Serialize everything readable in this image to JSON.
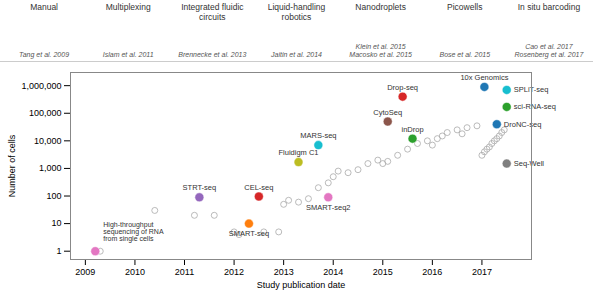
{
  "chart_data": {
    "type": "scatter",
    "xlabel": "Study publication date",
    "ylabel": "Number of cells",
    "log": "y",
    "grid": false,
    "xlim": [
      2008.7,
      2018.0
    ],
    "ylim": [
      0.5,
      3000000
    ],
    "xticks": [
      2009,
      2010,
      2011,
      2012,
      2013,
      2014,
      2015,
      2016,
      2017
    ],
    "yticks": [
      1,
      10,
      100,
      {
        "value": 1000,
        "label": "1,000"
      },
      {
        "value": 10000,
        "label": "10,000"
      },
      {
        "value": 100000,
        "label": "100,000"
      },
      {
        "value": 1000000,
        "label": "1,000,000"
      }
    ],
    "annotations": [
      {
        "label": "Manual",
        "ref": "Tang et al. 2009"
      },
      {
        "label": "Multiplexing",
        "ref": "Islam et al. 2011"
      },
      {
        "label": "Integrated fluidic\ncircuits",
        "ref": "Brennecke et al. 2013"
      },
      {
        "label": "Liquid-handling\nrobotics",
        "ref": "Jaitin et al. 2014"
      },
      {
        "label": "Nanodroplets",
        "ref": "Klein et al. 2015\nMacosko et al. 2015"
      },
      {
        "label": "Picowells",
        "ref": "Bose et al. 2015"
      },
      {
        "label": "In situ barcoding",
        "ref": "Cao et al. 2017\nRosenberg et al. 2017"
      }
    ],
    "series": [
      {
        "marker": "open",
        "color": "#aaaaaa",
        "x": [
          2009.3,
          2010.4,
          2011.2,
          2011.6,
          2012.0,
          2012.1,
          2012.6,
          2012.9,
          2013.0,
          2013.1,
          2013.3,
          2013.5,
          2013.7,
          2013.9,
          2014.0,
          2014.1,
          2014.3,
          2014.5,
          2014.7,
          2014.9,
          2015.0,
          2015.1,
          2015.3,
          2015.5,
          2015.7,
          2015.9,
          2016.0,
          2016.1,
          2016.2,
          2016.3,
          2016.5,
          2016.6,
          2016.7,
          2016.9,
          2017.0,
          2017.05,
          2017.1,
          2017.15,
          2017.2,
          2017.25,
          2017.3,
          2017.35,
          2017.4,
          2017.45
        ],
        "values": [
          1,
          30,
          20,
          20,
          5,
          4,
          5,
          5,
          50,
          70,
          60,
          80,
          200,
          300,
          500,
          800,
          700,
          900,
          1500,
          2000,
          1500,
          1800,
          3000,
          5000,
          8000,
          10000,
          7000,
          12000,
          15000,
          20000,
          25000,
          18000,
          30000,
          35000,
          3000,
          4000,
          5000,
          6000,
          8000,
          10000,
          12000,
          15000,
          20000,
          25000
        ]
      },
      {
        "marker": "filled",
        "x": [
          2009.2,
          2011.3,
          2012.5,
          2012.3,
          2013.3,
          2013.7,
          2013.9,
          2015.1,
          2015.4,
          2015.6,
          2017.05,
          2017.5,
          2017.5,
          2017.3,
          2017.5
        ],
        "values": [
          1,
          90,
          96,
          10,
          1700,
          7000,
          90,
          50000,
          400000,
          12000,
          900000,
          700000,
          170000,
          40000,
          1500
        ],
        "colors": [
          "#e377c2",
          "#9467bd",
          "#d62728",
          "#ff7f0e",
          "#bcbd22",
          "#17becf",
          "#e377c2",
          "#8c564b",
          "#d62728",
          "#2ca02c",
          "#1f77b4",
          "#17becf",
          "#2ca02c",
          "#1f77b4",
          "#7f7f7f"
        ],
        "labels": [
          "High-throughput\nsequencing of RNA\nfrom single cells",
          "STRT-seq",
          "CEL-seq",
          "SMART-seq",
          "Fluidigm C1",
          "MARS-seq",
          "SMART-seq2",
          "CytoSeq",
          "Drop-seq",
          "inDrop",
          "10x Genomics",
          "SPLiT-seq",
          "sci-RNA-seq",
          "DroNC-seq",
          "Seq-Well"
        ]
      }
    ]
  }
}
